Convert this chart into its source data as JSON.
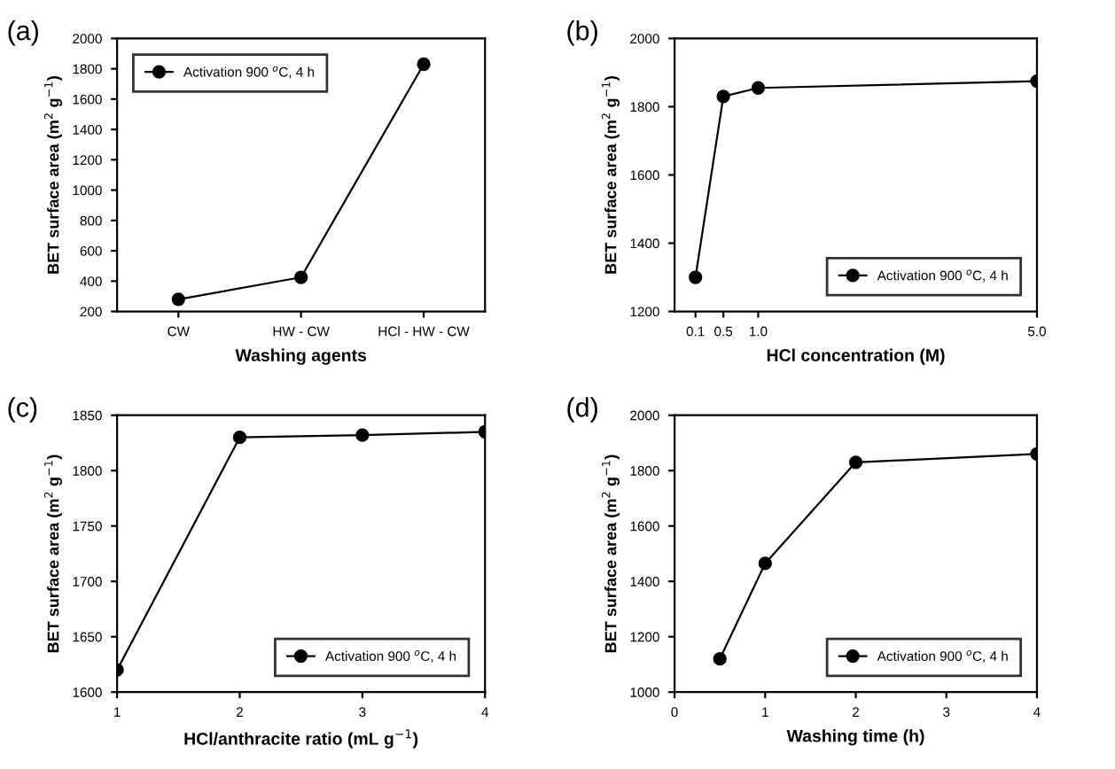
{
  "chart_data": [
    {
      "type": "line",
      "title": "(a)",
      "categories": [
        "CW",
        "HW - CW",
        "HCl - HW - CW"
      ],
      "series": [
        {
          "name": "Activation 900 $^{o}$C, 4 h",
          "color": "#000000",
          "values": [
            280,
            425,
            1830
          ]
        }
      ],
      "xlabel": "Washing agents",
      "ylabel": "BET surface area (m$^{2}$ g$^{−1}$)",
      "ylim": [
        200,
        2000
      ],
      "yticks": [
        200,
        400,
        600,
        800,
        1000,
        1200,
        1400,
        1600,
        1800,
        2000
      ],
      "legend": "top left",
      "marker": "circle",
      "line_style": "solid",
      "grid": false
    },
    {
      "type": "line",
      "title": "(b)",
      "x": [
        0.1,
        0.5,
        1.0,
        5.0
      ],
      "series": [
        {
          "name": "Activation 900 $^{o}$C, 4 h",
          "color": "#000000",
          "values": [
            1300,
            1830,
            1855,
            1875
          ]
        }
      ],
      "xlabel": "HCl concentration (M)",
      "ylabel": "BET surface area (m$^{2}$ g$^{−1}$)",
      "xlim": [
        -0.2,
        5.0
      ],
      "xticks": [
        0.1,
        0.5,
        {
          "value": 1,
          "label": "1.0"
        },
        {
          "value": 5,
          "label": "5.0"
        }
      ],
      "ylim": [
        1200,
        2000
      ],
      "yticks": [
        1200,
        1400,
        1600,
        1800,
        2000
      ],
      "legend": "bottom right",
      "marker": "circle",
      "line_style": "solid",
      "grid": false
    },
    {
      "type": "line",
      "title": "(c)",
      "x": [
        1,
        2,
        3,
        4
      ],
      "series": [
        {
          "name": "Activation 900 $^{o}$C, 4 h",
          "color": "#000000",
          "values": [
            1620,
            1830,
            1832,
            1835
          ]
        }
      ],
      "xlabel": "HCl/anthracite ratio (mL g$^{−1}$)",
      "ylabel": "BET surface area (m$^{2}$ g$^{−1}$)",
      "xlim": [
        1,
        4
      ],
      "xticks": [
        1,
        2,
        3,
        4
      ],
      "ylim": [
        1600,
        1850
      ],
      "yticks": [
        1600,
        1650,
        1700,
        1750,
        1800,
        1850
      ],
      "legend": "bottom right",
      "marker": "circle",
      "line_style": "solid",
      "grid": false
    },
    {
      "type": "line",
      "title": "(d)",
      "x": [
        0.5,
        1,
        2,
        4
      ],
      "series": [
        {
          "name": "Activation 900 $^{o}$C, 4 h",
          "color": "#000000",
          "values": [
            1120,
            1465,
            1830,
            1860
          ]
        }
      ],
      "xlabel": "Washing time (h)",
      "ylabel": "BET surface area (m$^{2}$ g$^{−1}$)",
      "xlim": [
        0,
        4
      ],
      "xticks": [
        0,
        1,
        2,
        3,
        4
      ],
      "ylim": [
        1000,
        2000
      ],
      "yticks": [
        1000,
        1200,
        1400,
        1600,
        1800,
        2000
      ],
      "legend": "bottom right",
      "marker": "circle",
      "line_style": "solid",
      "grid": false
    }
  ]
}
